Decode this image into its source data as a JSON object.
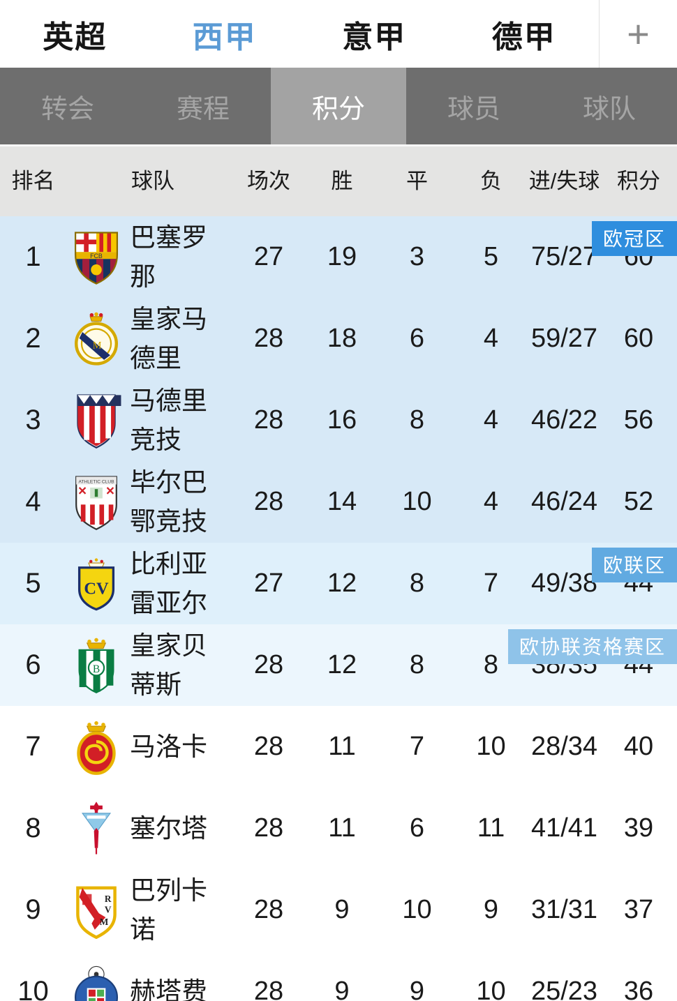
{
  "top_tabs": {
    "items": [
      {
        "label": "英超",
        "active": false
      },
      {
        "label": "西甲",
        "active": true
      },
      {
        "label": "意甲",
        "active": false
      },
      {
        "label": "德甲",
        "active": false
      }
    ],
    "add_label": "+",
    "active_color": "#5b9bd5"
  },
  "sub_nav": {
    "items": [
      {
        "label": "转会",
        "active": false
      },
      {
        "label": "赛程",
        "active": false
      },
      {
        "label": "积分",
        "active": true
      },
      {
        "label": "球员",
        "active": false
      },
      {
        "label": "球队",
        "active": false
      }
    ]
  },
  "table": {
    "headers": {
      "rank": "排名",
      "team": "球队",
      "played": "场次",
      "win": "胜",
      "draw": "平",
      "loss": "负",
      "goals": "进/失球",
      "points": "积分"
    },
    "zone_colors": {
      "cl": "#2f8ede",
      "el": "#61aae1",
      "conf": "#8fc3e9"
    },
    "row_colors": {
      "cl": "#d7e9f7",
      "el": "#dff0fb",
      "conf": "#ecf6fd",
      "none": "#ffffff"
    },
    "rows": [
      {
        "rank": "1",
        "team": "巴塞罗那",
        "crest": "barcelona-crest",
        "played": "27",
        "win": "19",
        "draw": "3",
        "loss": "5",
        "goals": "75/27",
        "points": "60",
        "zone": "cl",
        "badge": "欧冠区"
      },
      {
        "rank": "2",
        "team": "皇家马德里",
        "crest": "real-madrid-crest",
        "played": "28",
        "win": "18",
        "draw": "6",
        "loss": "4",
        "goals": "59/27",
        "points": "60",
        "zone": "cl",
        "badge": null
      },
      {
        "rank": "3",
        "team": "马德里竞技",
        "crest": "atletico-madrid-crest",
        "played": "28",
        "win": "16",
        "draw": "8",
        "loss": "4",
        "goals": "46/22",
        "points": "56",
        "zone": "cl",
        "badge": null
      },
      {
        "rank": "4",
        "team": "毕尔巴鄂竞技",
        "crest": "athletic-bilbao-crest",
        "played": "28",
        "win": "14",
        "draw": "10",
        "loss": "4",
        "goals": "46/24",
        "points": "52",
        "zone": "cl",
        "badge": null
      },
      {
        "rank": "5",
        "team": "比利亚雷亚尔",
        "crest": "villarreal-crest",
        "played": "27",
        "win": "12",
        "draw": "8",
        "loss": "7",
        "goals": "49/38",
        "points": "44",
        "zone": "el",
        "badge": "欧联区"
      },
      {
        "rank": "6",
        "team": "皇家贝蒂斯",
        "crest": "real-betis-crest",
        "played": "28",
        "win": "12",
        "draw": "8",
        "loss": "8",
        "goals": "38/35",
        "points": "44",
        "zone": "conf",
        "badge": "欧协联资格赛区"
      },
      {
        "rank": "7",
        "team": "马洛卡",
        "crest": "mallorca-crest",
        "played": "28",
        "win": "11",
        "draw": "7",
        "loss": "10",
        "goals": "28/34",
        "points": "40",
        "zone": "none",
        "badge": null
      },
      {
        "rank": "8",
        "team": "塞尔塔",
        "crest": "celta-crest",
        "played": "28",
        "win": "11",
        "draw": "6",
        "loss": "11",
        "goals": "41/41",
        "points": "39",
        "zone": "none",
        "badge": null
      },
      {
        "rank": "9",
        "team": "巴列卡诺",
        "crest": "rayo-vallecano-crest",
        "played": "28",
        "win": "9",
        "draw": "10",
        "loss": "9",
        "goals": "31/31",
        "points": "37",
        "zone": "none",
        "badge": null
      },
      {
        "rank": "10",
        "team": "赫塔费",
        "crest": "getafe-crest",
        "played": "28",
        "win": "9",
        "draw": "9",
        "loss": "10",
        "goals": "25/23",
        "points": "36",
        "zone": "none",
        "badge": null
      }
    ]
  }
}
